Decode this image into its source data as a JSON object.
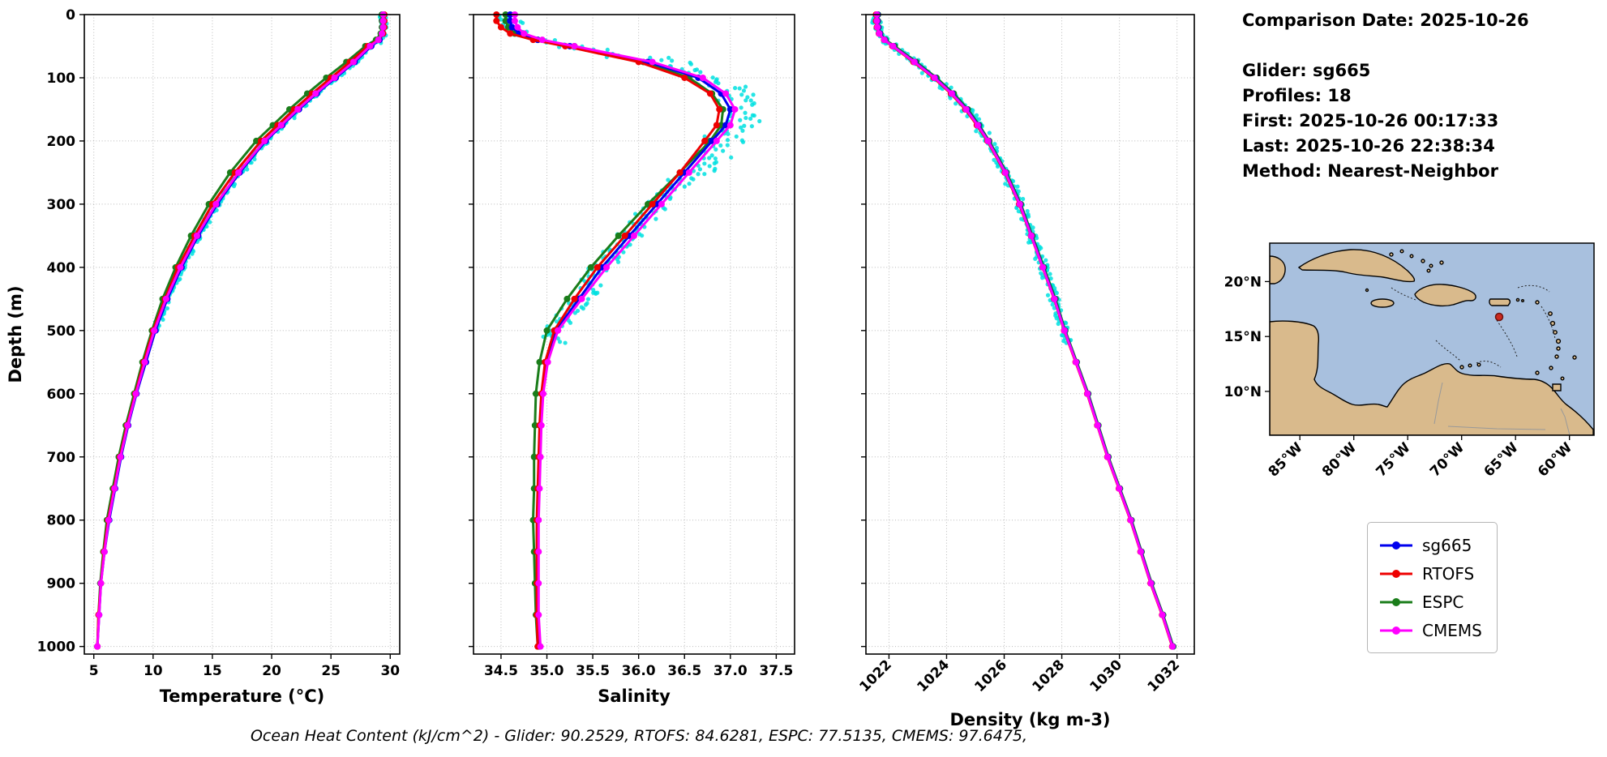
{
  "info_panel": {
    "lines": [
      "Comparison Date: 2025-10-26",
      "",
      "Glider: sg665",
      "Profiles: 18",
      "First: 2025-10-26 00:17:33",
      "Last: 2025-10-26 22:38:34",
      "Method: Nearest-Neighbor"
    ]
  },
  "footer": {
    "text": "Ocean Heat Content (kJ/cm^2) - Glider: 90.2529,  RTOFS: 84.6281,  ESPC: 77.5135,  CMEMS: 97.6475,"
  },
  "legend": {
    "entries": [
      {
        "label": "sg665",
        "color": "#0000ee"
      },
      {
        "label": "RTOFS",
        "color": "#ee0000"
      },
      {
        "label": "ESPC",
        "color": "#1a7d1a"
      },
      {
        "label": "CMEMS",
        "color": "#ff00ff"
      }
    ]
  },
  "map": {
    "ocean_color": "#a8c0de",
    "land_color": "#d9ba8c",
    "coast_color": "#000000",
    "marker_color": "#cc2a1f",
    "yticks": [
      "20°N",
      "15°N",
      "10°N"
    ],
    "xticks": [
      "85°W",
      "80°W",
      "75°W",
      "70°W",
      "65°W",
      "60°W"
    ]
  },
  "chart_data": [
    {
      "type": "line",
      "xlabel": "Temperature (°C)",
      "ylabel": "Depth (m)",
      "xlim": [
        4.2,
        30.8
      ],
      "ylim": [
        0,
        1012
      ],
      "xticks": [
        5,
        10,
        15,
        20,
        25,
        30
      ],
      "xtick_labels": [
        "5",
        "10",
        "15",
        "20",
        "25",
        "30"
      ],
      "yticks": [
        0,
        100,
        200,
        300,
        400,
        500,
        600,
        700,
        800,
        900,
        1000
      ],
      "ytick_labels": [
        "0",
        "100",
        "200",
        "300",
        "400",
        "500",
        "600",
        "700",
        "800",
        "900",
        "1000"
      ],
      "depths": [
        0,
        10,
        20,
        30,
        40,
        50,
        75,
        100,
        125,
        150,
        175,
        200,
        250,
        300,
        350,
        400,
        450,
        500,
        550,
        600,
        650,
        700,
        750,
        800,
        850,
        900,
        950,
        1000
      ],
      "series": [
        {
          "name": "sg665",
          "color": "#0000ee",
          "values": [
            29.4,
            29.4,
            29.4,
            29.4,
            29.1,
            28.4,
            27.0,
            25.4,
            23.8,
            22.3,
            20.9,
            19.5,
            17.3,
            15.4,
            13.8,
            12.4,
            11.2,
            10.2,
            9.4,
            8.6,
            7.9,
            7.3,
            6.8,
            6.3,
            5.9,
            5.6,
            5.45,
            5.3
          ]
        },
        {
          "name": "RTOFS",
          "color": "#ee0000",
          "values": [
            29.5,
            29.5,
            29.5,
            29.4,
            29.0,
            28.1,
            26.6,
            25.0,
            23.4,
            21.9,
            20.5,
            19.1,
            16.9,
            15.0,
            13.5,
            12.1,
            11.0,
            10.0,
            9.2,
            8.5,
            7.8,
            7.2,
            6.7,
            6.2,
            5.85,
            5.6,
            5.4,
            5.3
          ]
        },
        {
          "name": "ESPC",
          "color": "#1a7d1a",
          "values": [
            29.3,
            29.3,
            29.3,
            29.2,
            28.8,
            27.9,
            26.3,
            24.6,
            23.0,
            21.5,
            20.1,
            18.7,
            16.5,
            14.7,
            13.2,
            11.9,
            10.8,
            9.9,
            9.1,
            8.4,
            7.7,
            7.1,
            6.6,
            6.1,
            5.8,
            5.55,
            5.4,
            5.3
          ]
        },
        {
          "name": "CMEMS",
          "color": "#ff00ff",
          "values": [
            29.4,
            29.4,
            29.4,
            29.3,
            29.0,
            28.3,
            26.9,
            25.3,
            23.7,
            22.2,
            20.8,
            19.4,
            17.2,
            15.3,
            13.7,
            12.3,
            11.1,
            10.1,
            9.3,
            8.55,
            7.85,
            7.25,
            6.75,
            6.25,
            5.9,
            5.6,
            5.45,
            5.3
          ]
        }
      ],
      "scatter": {
        "name": "glider-raw",
        "color": "#00e0e0",
        "max_depth": 500,
        "jitter": 0.3
      }
    },
    {
      "type": "line",
      "xlabel": "Salinity",
      "ylabel": "Depth (m)",
      "xlim": [
        34.2,
        37.7
      ],
      "ylim": [
        0,
        1012
      ],
      "xticks": [
        34.5,
        35.0,
        35.5,
        36.0,
        36.5,
        37.0,
        37.5
      ],
      "xtick_labels": [
        "34.5",
        "35.0",
        "35.5",
        "36.0",
        "36.5",
        "37.0",
        "37.5"
      ],
      "yticks": [
        0,
        100,
        200,
        300,
        400,
        500,
        600,
        700,
        800,
        900,
        1000
      ],
      "ytick_labels": [],
      "depths": [
        0,
        10,
        20,
        30,
        40,
        50,
        75,
        100,
        125,
        150,
        175,
        200,
        250,
        300,
        350,
        400,
        450,
        500,
        550,
        600,
        650,
        700,
        750,
        800,
        850,
        900,
        950,
        1000
      ],
      "series": [
        {
          "name": "sg665",
          "color": "#0000ee",
          "values": [
            34.6,
            34.6,
            34.62,
            34.7,
            34.9,
            35.25,
            36.1,
            36.65,
            36.9,
            37.0,
            36.95,
            36.8,
            36.5,
            36.2,
            35.9,
            35.6,
            35.35,
            35.1,
            35.0,
            34.95,
            34.93,
            34.92,
            34.91,
            34.9,
            34.9,
            34.9,
            34.9,
            34.92
          ]
        },
        {
          "name": "RTOFS",
          "color": "#ee0000",
          "values": [
            34.45,
            34.45,
            34.5,
            34.6,
            34.85,
            35.2,
            36.0,
            36.5,
            36.78,
            36.88,
            36.85,
            36.72,
            36.45,
            36.15,
            35.85,
            35.55,
            35.3,
            35.08,
            34.98,
            34.94,
            34.92,
            34.91,
            34.9,
            34.89,
            34.89,
            34.89,
            34.89,
            34.9
          ]
        },
        {
          "name": "ESPC",
          "color": "#1a7d1a",
          "values": [
            34.55,
            34.55,
            34.58,
            34.65,
            34.9,
            35.3,
            36.05,
            36.55,
            36.8,
            36.92,
            36.9,
            36.78,
            36.45,
            36.1,
            35.78,
            35.48,
            35.22,
            35.0,
            34.92,
            34.88,
            34.87,
            34.86,
            34.86,
            34.85,
            34.86,
            34.87,
            34.88,
            34.9
          ]
        },
        {
          "name": "CMEMS",
          "color": "#ff00ff",
          "values": [
            34.65,
            34.65,
            34.68,
            34.75,
            34.95,
            35.3,
            36.15,
            36.7,
            36.95,
            37.05,
            37.0,
            36.85,
            36.55,
            36.25,
            35.95,
            35.65,
            35.38,
            35.12,
            35.01,
            34.96,
            34.94,
            34.93,
            34.92,
            34.91,
            34.91,
            34.91,
            34.91,
            34.93
          ]
        }
      ],
      "scatter": {
        "name": "glider-raw",
        "color": "#00e0e0",
        "max_depth": 520,
        "jitter": 0.15,
        "bulge_range": [
          70,
          260
        ],
        "bulge_amp": 0.3
      }
    },
    {
      "type": "line",
      "xlabel": "Density (kg m-3)",
      "ylabel": "Depth (m)",
      "xlim": [
        1021.2,
        1032.6
      ],
      "ylim": [
        0,
        1012
      ],
      "xticks": [
        1022,
        1024,
        1026,
        1028,
        1030,
        1032
      ],
      "xtick_labels": [
        "1022",
        "1024",
        "1026",
        "1028",
        "1030",
        "1032"
      ],
      "yticks": [
        0,
        100,
        200,
        300,
        400,
        500,
        600,
        700,
        800,
        900,
        1000
      ],
      "ytick_labels": [],
      "depths": [
        0,
        10,
        20,
        30,
        40,
        50,
        75,
        100,
        125,
        150,
        175,
        200,
        250,
        300,
        350,
        400,
        450,
        500,
        550,
        600,
        650,
        700,
        750,
        800,
        850,
        900,
        950,
        1000
      ],
      "series": [
        {
          "name": "sg665",
          "color": "#0000ee",
          "values": [
            1021.6,
            1021.6,
            1021.62,
            1021.68,
            1021.85,
            1022.15,
            1022.9,
            1023.6,
            1024.2,
            1024.7,
            1025.1,
            1025.45,
            1026.05,
            1026.55,
            1026.95,
            1027.35,
            1027.75,
            1028.1,
            1028.5,
            1028.9,
            1029.25,
            1029.6,
            1030.0,
            1030.4,
            1030.75,
            1031.1,
            1031.5,
            1031.85
          ]
        },
        {
          "name": "RTOFS",
          "color": "#ee0000",
          "values": [
            1021.55,
            1021.55,
            1021.58,
            1021.65,
            1021.83,
            1022.12,
            1022.85,
            1023.55,
            1024.15,
            1024.65,
            1025.05,
            1025.42,
            1026.02,
            1026.52,
            1026.93,
            1027.33,
            1027.73,
            1028.08,
            1028.48,
            1028.88,
            1029.23,
            1029.58,
            1029.98,
            1030.38,
            1030.73,
            1031.08,
            1031.48,
            1031.83
          ]
        },
        {
          "name": "ESPC",
          "color": "#1a7d1a",
          "values": [
            1021.62,
            1021.62,
            1021.64,
            1021.7,
            1021.88,
            1022.2,
            1022.95,
            1023.65,
            1024.25,
            1024.74,
            1025.13,
            1025.48,
            1026.08,
            1026.58,
            1026.98,
            1027.38,
            1027.78,
            1028.12,
            1028.52,
            1028.92,
            1029.27,
            1029.62,
            1030.02,
            1030.42,
            1030.77,
            1031.12,
            1031.52,
            1031.87
          ]
        },
        {
          "name": "CMEMS",
          "color": "#ff00ff",
          "values": [
            1021.58,
            1021.58,
            1021.6,
            1021.66,
            1021.84,
            1022.14,
            1022.88,
            1023.58,
            1024.18,
            1024.68,
            1025.08,
            1025.44,
            1026.04,
            1026.54,
            1026.94,
            1027.34,
            1027.74,
            1028.09,
            1028.49,
            1028.89,
            1029.24,
            1029.59,
            1029.99,
            1030.39,
            1030.74,
            1031.09,
            1031.49,
            1031.84
          ]
        }
      ],
      "scatter": {
        "name": "glider-raw",
        "color": "#00e0e0",
        "max_depth": 520,
        "jitter": 0.18
      }
    }
  ]
}
